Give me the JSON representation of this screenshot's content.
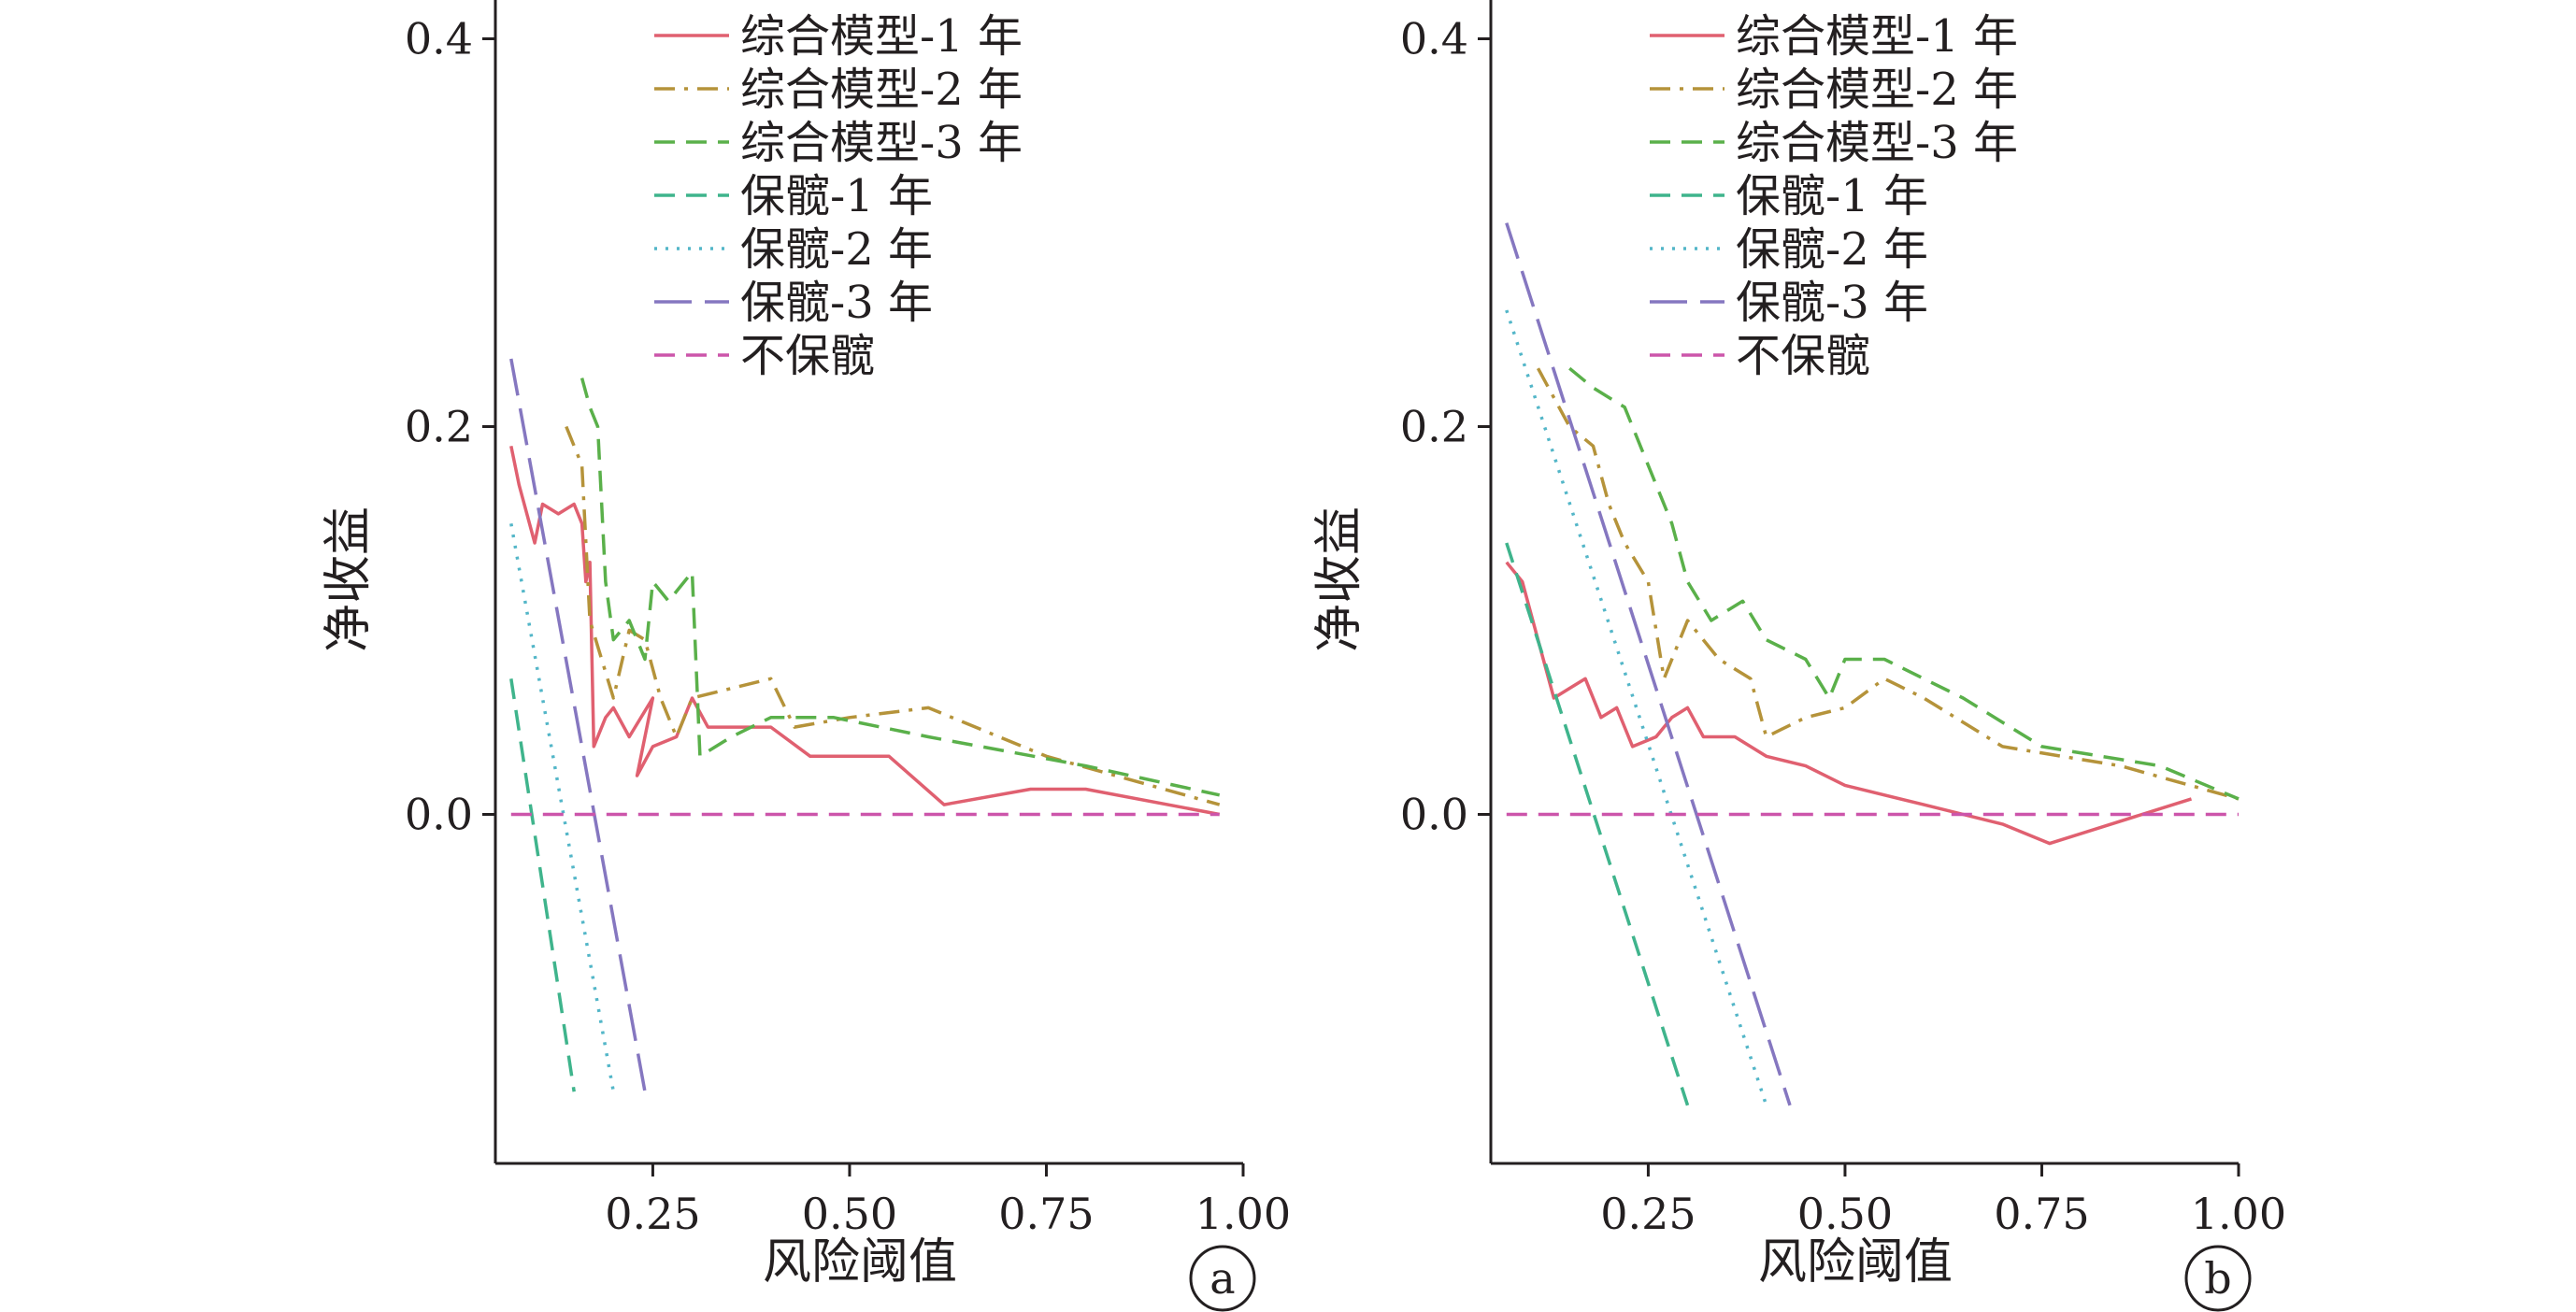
{
  "figure": {
    "colors": {
      "axis": "#231f20",
      "model_1y": "#e06070",
      "model_2y": "#b5933a",
      "model_3y": "#5ab04a",
      "keep_1y": "#3fb48c",
      "keep_2y": "#53b6c8",
      "keep_3y": "#8577c0",
      "no_keep": "#cc55aa"
    }
  },
  "chart_data": [
    {
      "type": "line",
      "panel": "a",
      "xlabel": "风险阈值",
      "ylabel": "净收益",
      "xlim": [
        0.05,
        1.0
      ],
      "ylim": [
        -0.18,
        0.42
      ],
      "x_ticks": [
        "0.25",
        "0.50",
        "0.75",
        "1.00"
      ],
      "y_ticks": [
        "0.0",
        "0.2",
        "0.4"
      ],
      "legend_position": "top",
      "series": [
        {
          "name": "综合模型-1 年",
          "style": "solid",
          "color": "#e06070",
          "points": [
            [
              0.07,
              0.19
            ],
            [
              0.08,
              0.17
            ],
            [
              0.1,
              0.14
            ],
            [
              0.11,
              0.16
            ],
            [
              0.13,
              0.155
            ],
            [
              0.15,
              0.16
            ],
            [
              0.16,
              0.15
            ],
            [
              0.165,
              0.12
            ],
            [
              0.17,
              0.13
            ],
            [
              0.175,
              0.035
            ],
            [
              0.19,
              0.05
            ],
            [
              0.2,
              0.055
            ],
            [
              0.22,
              0.04
            ],
            [
              0.25,
              0.06
            ],
            [
              0.23,
              0.02
            ],
            [
              0.25,
              0.035
            ],
            [
              0.28,
              0.04
            ],
            [
              0.3,
              0.06
            ],
            [
              0.32,
              0.045
            ],
            [
              0.4,
              0.045
            ],
            [
              0.45,
              0.03
            ],
            [
              0.55,
              0.03
            ],
            [
              0.62,
              0.005
            ],
            [
              0.73,
              0.013
            ],
            [
              0.8,
              0.013
            ],
            [
              0.97,
              0.0
            ]
          ]
        },
        {
          "name": "综合模型-2 年",
          "style": "dashdot",
          "color": "#b5933a",
          "points": [
            [
              0.14,
              0.2
            ],
            [
              0.16,
              0.18
            ],
            [
              0.17,
              0.1
            ],
            [
              0.2,
              0.06
            ],
            [
              0.22,
              0.095
            ],
            [
              0.24,
              0.09
            ],
            [
              0.26,
              0.06
            ],
            [
              0.28,
              0.04
            ],
            [
              0.3,
              0.06
            ],
            [
              0.35,
              0.065
            ],
            [
              0.4,
              0.07
            ],
            [
              0.43,
              0.045
            ],
            [
              0.5,
              0.05
            ],
            [
              0.6,
              0.055
            ],
            [
              0.75,
              0.03
            ],
            [
              0.97,
              0.005
            ]
          ]
        },
        {
          "name": "综合模型-3 年",
          "style": "dashed",
          "color": "#5ab04a",
          "points": [
            [
              0.16,
              0.225
            ],
            [
              0.17,
              0.21
            ],
            [
              0.18,
              0.2
            ],
            [
              0.19,
              0.12
            ],
            [
              0.2,
              0.09
            ],
            [
              0.22,
              0.1
            ],
            [
              0.24,
              0.08
            ],
            [
              0.25,
              0.12
            ],
            [
              0.27,
              0.11
            ],
            [
              0.29,
              0.12
            ],
            [
              0.3,
              0.125
            ],
            [
              0.31,
              0.03
            ],
            [
              0.35,
              0.04
            ],
            [
              0.4,
              0.05
            ],
            [
              0.48,
              0.05
            ],
            [
              0.6,
              0.04
            ],
            [
              0.8,
              0.025
            ],
            [
              0.97,
              0.01
            ]
          ]
        },
        {
          "name": "保髋-1 年",
          "style": "dashed",
          "color": "#3fb48c",
          "points": [
            [
              0.07,
              0.07
            ],
            [
              0.15,
              -0.143
            ]
          ]
        },
        {
          "name": "保髋-2 年",
          "style": "dotted",
          "color": "#53b6c8",
          "points": [
            [
              0.07,
              0.15
            ],
            [
              0.2,
              -0.143
            ]
          ]
        },
        {
          "name": "保髋-3 年",
          "style": "longdash",
          "color": "#8577c0",
          "points": [
            [
              0.07,
              0.235
            ],
            [
              0.24,
              -0.143
            ]
          ]
        },
        {
          "name": "不保髋",
          "style": "dashed",
          "color": "#cc55aa",
          "points": [
            [
              0.07,
              0.0
            ],
            [
              0.97,
              0.0
            ]
          ]
        }
      ]
    },
    {
      "type": "line",
      "panel": "b",
      "xlabel": "风险阈值",
      "ylabel": "净收益",
      "xlim": [
        0.05,
        1.0
      ],
      "ylim": [
        -0.18,
        0.42
      ],
      "x_ticks": [
        "0.25",
        "0.50",
        "0.75",
        "1.00"
      ],
      "y_ticks": [
        "0.0",
        "0.2",
        "0.4"
      ],
      "legend_position": "top",
      "series": [
        {
          "name": "综合模型-1 年",
          "style": "solid",
          "color": "#e06070",
          "points": [
            [
              0.07,
              0.13
            ],
            [
              0.09,
              0.12
            ],
            [
              0.11,
              0.09
            ],
            [
              0.13,
              0.06
            ],
            [
              0.15,
              0.065
            ],
            [
              0.17,
              0.07
            ],
            [
              0.19,
              0.05
            ],
            [
              0.21,
              0.055
            ],
            [
              0.23,
              0.035
            ],
            [
              0.26,
              0.04
            ],
            [
              0.28,
              0.05
            ],
            [
              0.3,
              0.055
            ],
            [
              0.32,
              0.04
            ],
            [
              0.36,
              0.04
            ],
            [
              0.4,
              0.03
            ],
            [
              0.45,
              0.025
            ],
            [
              0.5,
              0.015
            ],
            [
              0.6,
              0.005
            ],
            [
              0.7,
              -0.005
            ],
            [
              0.76,
              -0.015
            ],
            [
              0.94,
              0.008
            ]
          ]
        },
        {
          "name": "综合模型-2 年",
          "style": "dashdot",
          "color": "#b5933a",
          "points": [
            [
              0.11,
              0.23
            ],
            [
              0.15,
              0.2
            ],
            [
              0.18,
              0.19
            ],
            [
              0.2,
              0.16
            ],
            [
              0.22,
              0.14
            ],
            [
              0.25,
              0.12
            ],
            [
              0.27,
              0.07
            ],
            [
              0.3,
              0.1
            ],
            [
              0.34,
              0.08
            ],
            [
              0.38,
              0.07
            ],
            [
              0.4,
              0.04
            ],
            [
              0.45,
              0.05
            ],
            [
              0.5,
              0.055
            ],
            [
              0.55,
              0.07
            ],
            [
              0.6,
              0.06
            ],
            [
              0.7,
              0.035
            ],
            [
              0.85,
              0.025
            ],
            [
              1.0,
              0.008
            ]
          ]
        },
        {
          "name": "综合模型-3 年",
          "style": "dashed",
          "color": "#5ab04a",
          "points": [
            [
              0.15,
              0.23
            ],
            [
              0.18,
              0.22
            ],
            [
              0.22,
              0.21
            ],
            [
              0.25,
              0.18
            ],
            [
              0.28,
              0.15
            ],
            [
              0.3,
              0.12
            ],
            [
              0.33,
              0.1
            ],
            [
              0.37,
              0.11
            ],
            [
              0.4,
              0.09
            ],
            [
              0.45,
              0.08
            ],
            [
              0.48,
              0.06
            ],
            [
              0.5,
              0.08
            ],
            [
              0.55,
              0.08
            ],
            [
              0.6,
              0.07
            ],
            [
              0.65,
              0.06
            ],
            [
              0.75,
              0.035
            ],
            [
              0.9,
              0.025
            ],
            [
              1.0,
              0.008
            ]
          ]
        },
        {
          "name": "保髋-1 年",
          "style": "dashed",
          "color": "#3fb48c",
          "points": [
            [
              0.07,
              0.14
            ],
            [
              0.3,
              -0.15
            ]
          ]
        },
        {
          "name": "保髋-2 年",
          "style": "dotted",
          "color": "#53b6c8",
          "points": [
            [
              0.07,
              0.26
            ],
            [
              0.4,
              -0.15
            ]
          ]
        },
        {
          "name": "保髋-3 年",
          "style": "longdash",
          "color": "#8577c0",
          "points": [
            [
              0.07,
              0.305
            ],
            [
              0.43,
              -0.15
            ]
          ]
        },
        {
          "name": "不保髋",
          "style": "dashed",
          "color": "#cc55aa",
          "points": [
            [
              0.07,
              0.0
            ],
            [
              1.0,
              0.0
            ]
          ]
        }
      ]
    }
  ]
}
